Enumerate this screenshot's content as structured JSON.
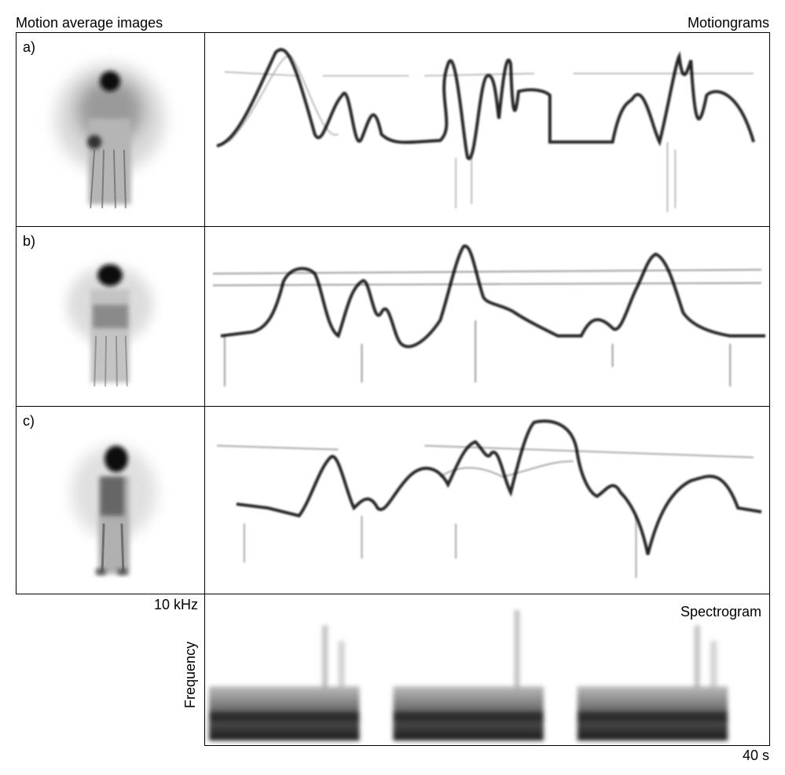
{
  "header": {
    "left_title": "Motion average images",
    "right_title": "Motiongrams"
  },
  "rows": [
    {
      "label": "a)"
    },
    {
      "label": "b)"
    },
    {
      "label": "c)"
    }
  ],
  "spectrogram": {
    "title": "Spectrogram",
    "ylabel": "Frequency",
    "ymax_label": "10 kHz",
    "xmax_label": "40 s"
  },
  "colors": {
    "ink": "#000000",
    "background": "#ffffff",
    "grey": "#7a7a7a"
  }
}
